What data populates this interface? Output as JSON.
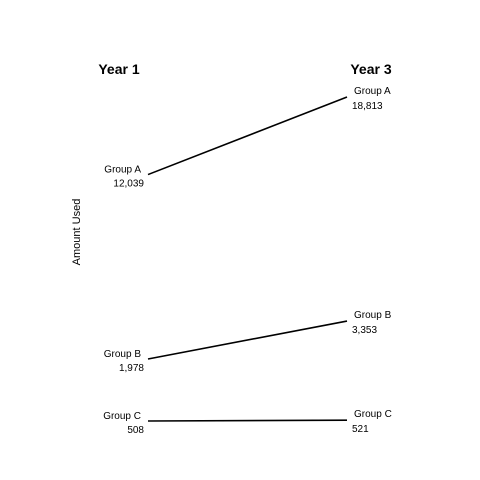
{
  "chart_data": {
    "type": "line",
    "title": "",
    "ylabel": "Amount Used",
    "x": [
      "Year 1",
      "Year 3"
    ],
    "series": [
      {
        "name": "Group A",
        "values": [
          12039,
          18813
        ],
        "labels": [
          "12,039",
          "18,813"
        ]
      },
      {
        "name": "Group B",
        "values": [
          1978,
          3353
        ],
        "labels": [
          "1,978",
          "3,353"
        ]
      },
      {
        "name": "Group C",
        "values": [
          508,
          521
        ],
        "labels": [
          "508",
          "521"
        ]
      }
    ],
    "grid": false
  }
}
